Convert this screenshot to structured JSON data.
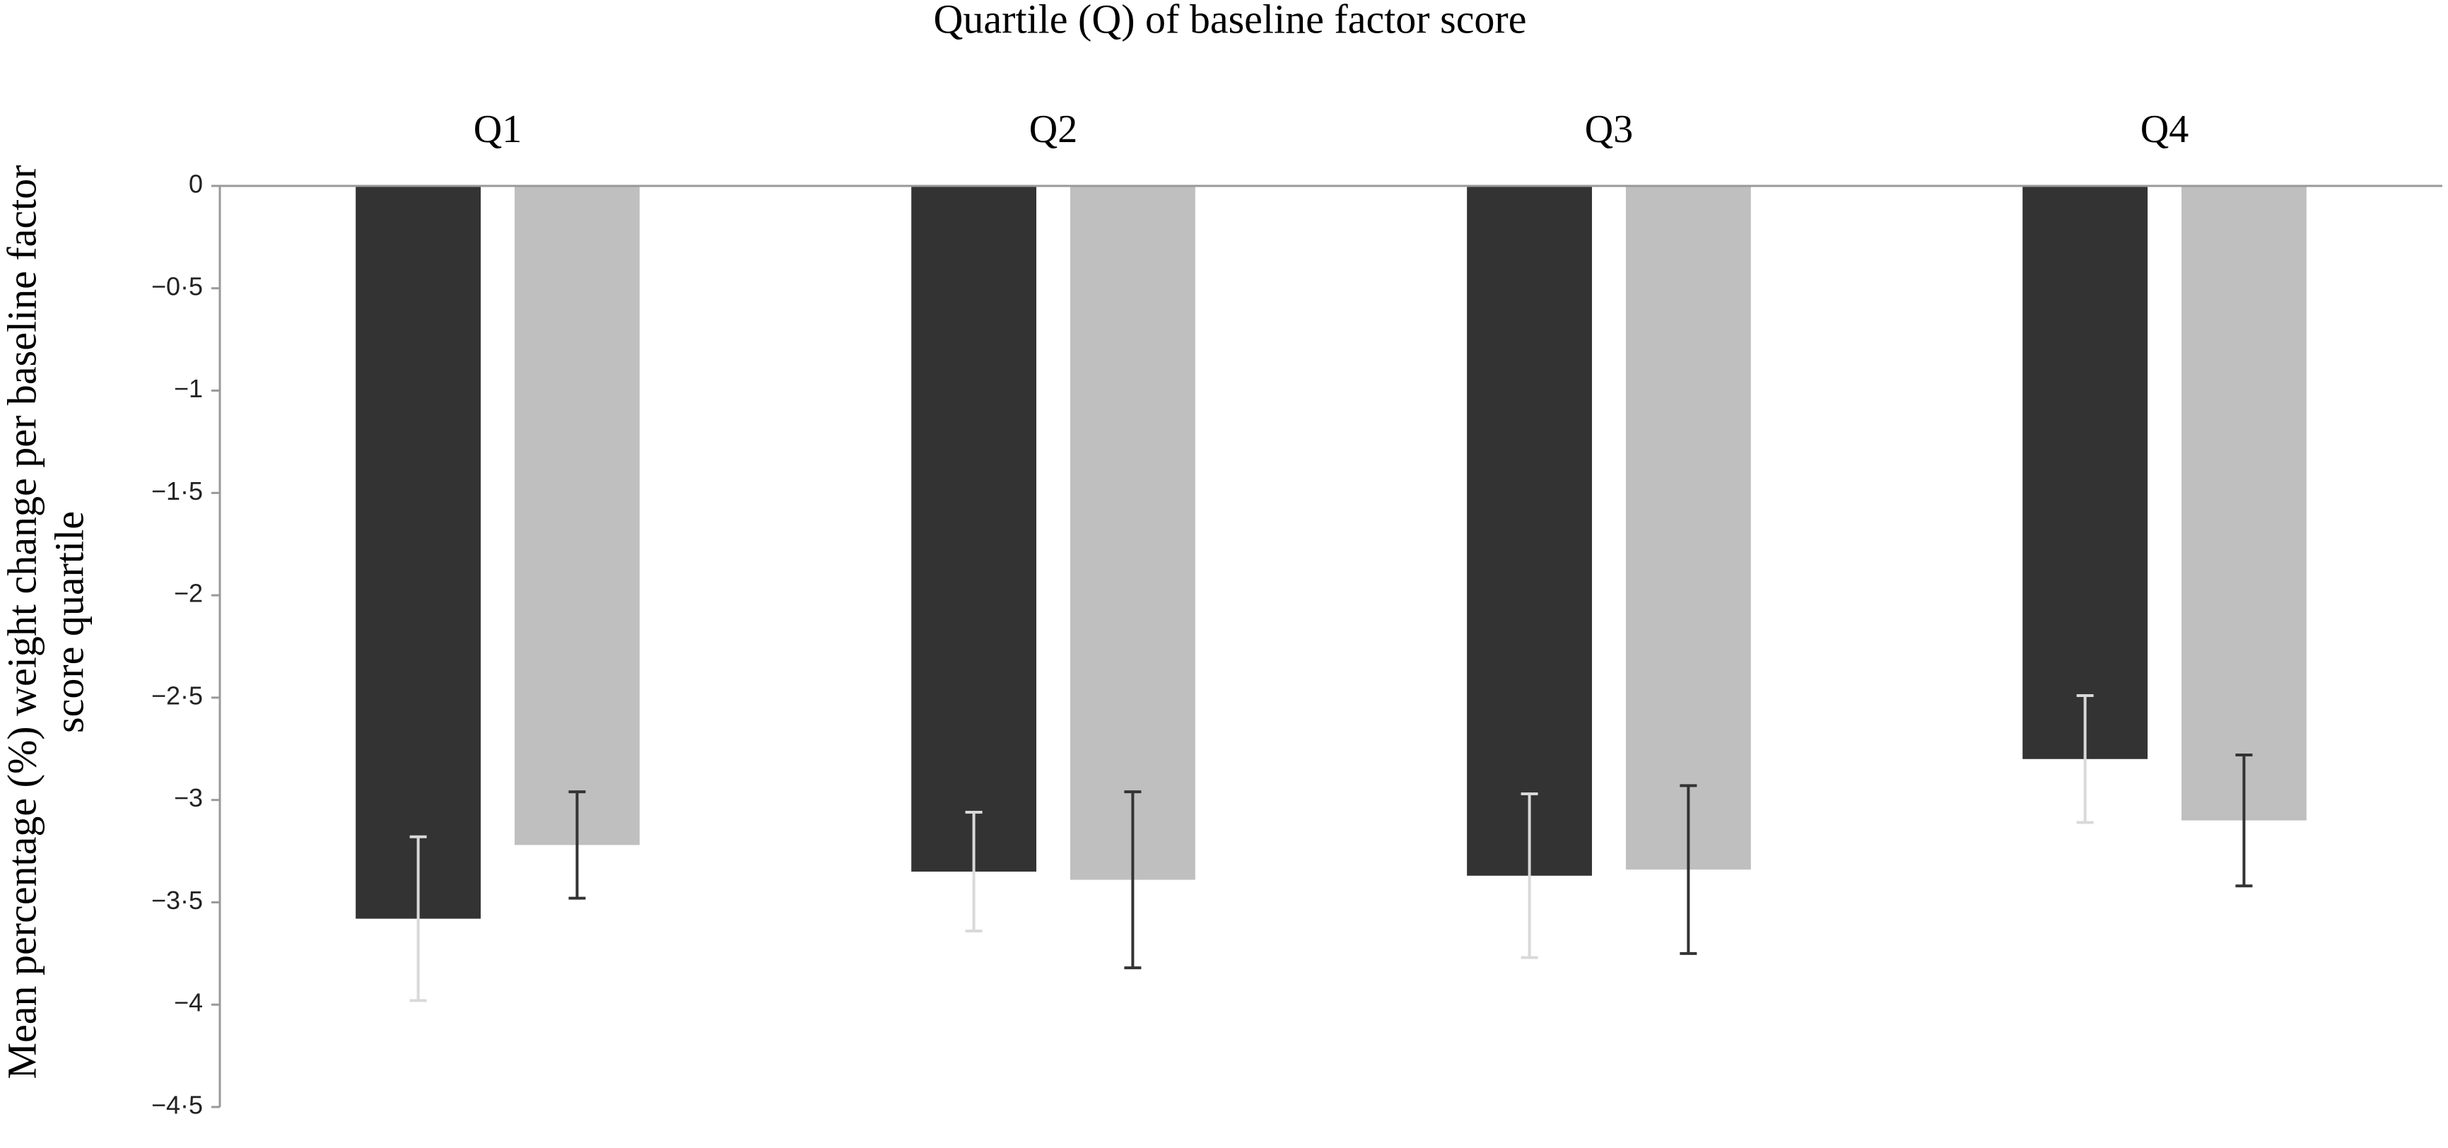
{
  "chart_data": {
    "type": "bar",
    "x_label": "Quartile (Q) of baseline factor score",
    "y_label": [
      "Mean percentage (%) weight change per baseline factor",
      "score quartile"
    ],
    "categories": [
      "Q1",
      "Q2",
      "Q3",
      "Q4"
    ],
    "series": [
      {
        "color": "#333333",
        "error_color": "#d9d9d9",
        "values": [
          -3.58,
          -3.35,
          -3.37,
          -2.8
        ],
        "errors": [
          0.4,
          0.29,
          0.4,
          0.31
        ]
      },
      {
        "color": "#bfbfbf",
        "error_color": "#333333",
        "values": [
          -3.22,
          -3.39,
          -3.34,
          -3.1
        ],
        "errors": [
          0.26,
          0.43,
          0.41,
          0.32
        ]
      }
    ],
    "ylim": [
      0,
      -4.5
    ],
    "yticks": [
      0,
      {
        "value": -0.5,
        "label": "−0·5"
      },
      {
        "value": -1,
        "label": "−1"
      },
      {
        "value": -1.5,
        "label": "−1·5"
      },
      {
        "value": -2,
        "label": "−2"
      },
      {
        "value": -2.5,
        "label": "−2·5"
      },
      {
        "value": -3,
        "label": "−3"
      },
      {
        "value": -3.5,
        "label": "−3·5"
      },
      {
        "value": -4,
        "label": "−4"
      },
      {
        "value": -4.5,
        "label": "−4·5"
      }
    ],
    "grid": false
  }
}
